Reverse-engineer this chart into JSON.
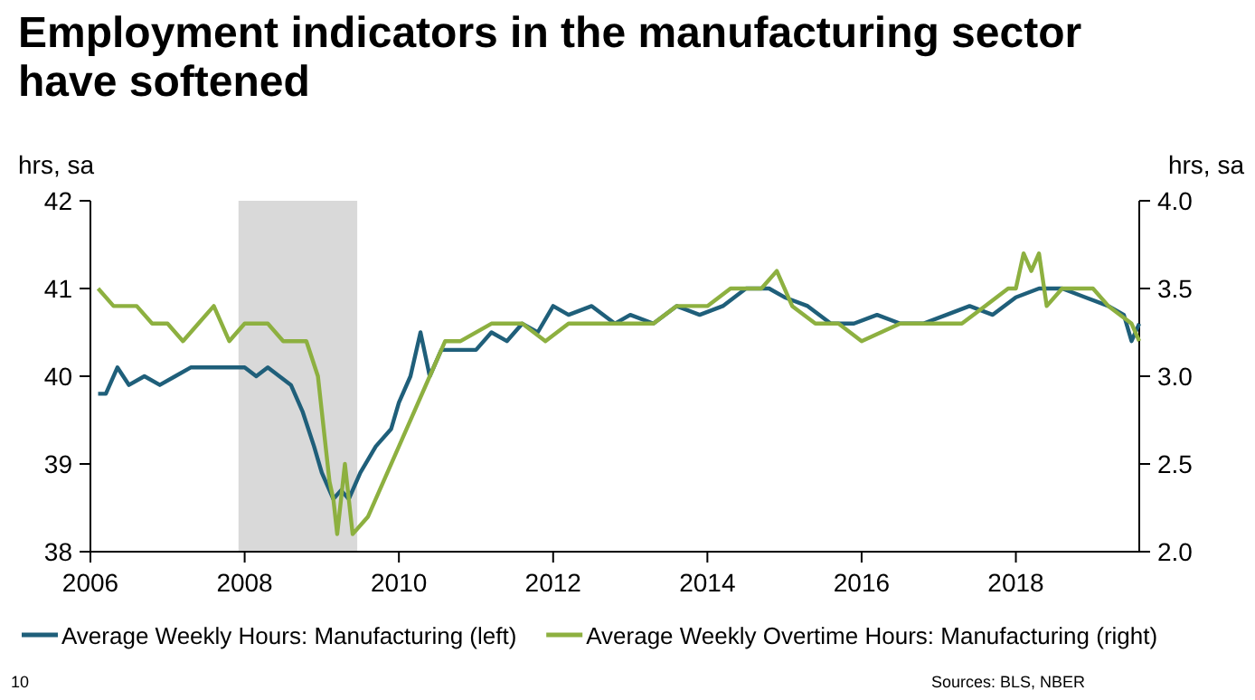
{
  "chart_data": {
    "type": "line",
    "title": "Employment indicators in the manufacturing sector have softened",
    "ylabel": "hrs, sa",
    "y2label": "hrs, sa",
    "xlim": [
      2006,
      2019.6
    ],
    "xticks": [
      2006,
      2008,
      2010,
      2012,
      2014,
      2016,
      2018
    ],
    "ylim": [
      38,
      42
    ],
    "yticks": [
      38,
      39,
      40,
      41,
      42
    ],
    "y2lim": [
      2.0,
      4.0
    ],
    "y2ticks": [
      {
        "value": 2,
        "label": "2.0"
      },
      {
        "value": 2.5,
        "label": "2.5"
      },
      {
        "value": 3,
        "label": "3.0"
      },
      {
        "value": 3.5,
        "label": "3.5"
      },
      {
        "value": 4,
        "label": "4.0"
      }
    ],
    "bands": [
      {
        "axis": "x",
        "from": 2007.92,
        "to": 2009.46,
        "color": "#d9d9d9"
      }
    ],
    "legend": "bottom",
    "marker": "none",
    "line_style": "solid",
    "series": [
      {
        "name": "Average Weekly Hours: Manufacturing (left)",
        "color": "#1f5f7a",
        "x": [
          2006.1,
          2006.2,
          2006.35,
          2006.5,
          2006.7,
          2006.9,
          2007.1,
          2007.3,
          2007.5,
          2007.7,
          2008.0,
          2008.15,
          2008.3,
          2008.45,
          2008.6,
          2008.75,
          2008.9,
          2009.0,
          2009.15,
          2009.25,
          2009.35,
          2009.5,
          2009.7,
          2009.9,
          2010.0,
          2010.15,
          2010.28,
          2010.4,
          2010.55,
          2010.8,
          2011.0,
          2011.2,
          2011.4,
          2011.6,
          2011.8,
          2012.0,
          2012.2,
          2012.5,
          2012.8,
          2013.0,
          2013.3,
          2013.6,
          2013.9,
          2014.2,
          2014.5,
          2014.8,
          2015.0,
          2015.3,
          2015.6,
          2015.9,
          2016.2,
          2016.5,
          2016.8,
          2017.1,
          2017.4,
          2017.7,
          2018.0,
          2018.3,
          2018.6,
          2018.9,
          2019.2,
          2019.4,
          2019.5,
          2019.6
        ],
        "values": [
          39.8,
          39.8,
          40.1,
          39.9,
          40.0,
          39.9,
          40.0,
          40.1,
          40.1,
          40.1,
          40.1,
          40.0,
          40.1,
          40.0,
          39.9,
          39.6,
          39.2,
          38.9,
          38.6,
          38.7,
          38.6,
          38.9,
          39.2,
          39.4,
          39.7,
          40.0,
          40.5,
          40.0,
          40.3,
          40.3,
          40.3,
          40.5,
          40.4,
          40.6,
          40.5,
          40.8,
          40.7,
          40.8,
          40.6,
          40.7,
          40.6,
          40.8,
          40.7,
          40.8,
          41.0,
          41.0,
          40.9,
          40.8,
          40.6,
          40.6,
          40.7,
          40.6,
          40.6,
          40.7,
          40.8,
          40.7,
          40.9,
          41.0,
          41.0,
          40.9,
          40.8,
          40.7,
          40.4,
          40.6
        ]
      },
      {
        "name": "Average Weekly Overtime Hours: Manufacturing (right)",
        "color": "#8db040",
        "axis": "y2",
        "x": [
          2006.1,
          2006.3,
          2006.6,
          2006.8,
          2007.0,
          2007.2,
          2007.4,
          2007.6,
          2007.8,
          2008.0,
          2008.3,
          2008.5,
          2008.8,
          2008.95,
          2009.0,
          2009.1,
          2009.15,
          2009.2,
          2009.3,
          2009.4,
          2009.6,
          2009.8,
          2010.0,
          2010.2,
          2010.4,
          2010.6,
          2010.8,
          2011.2,
          2011.6,
          2011.9,
          2012.2,
          2012.5,
          2012.8,
          2013.0,
          2013.3,
          2013.6,
          2014.0,
          2014.3,
          2014.7,
          2014.9,
          2015.1,
          2015.4,
          2015.7,
          2016.0,
          2016.5,
          2017.0,
          2017.3,
          2017.6,
          2017.9,
          2018.0,
          2018.1,
          2018.2,
          2018.3,
          2018.4,
          2018.6,
          2019.0,
          2019.2,
          2019.5,
          2019.6
        ],
        "values": [
          3.5,
          3.4,
          3.4,
          3.3,
          3.3,
          3.2,
          3.3,
          3.4,
          3.2,
          3.3,
          3.3,
          3.2,
          3.2,
          3.0,
          2.8,
          2.4,
          2.3,
          2.1,
          2.5,
          2.1,
          2.2,
          2.4,
          2.6,
          2.8,
          3.0,
          3.2,
          3.2,
          3.3,
          3.3,
          3.2,
          3.3,
          3.3,
          3.3,
          3.3,
          3.3,
          3.4,
          3.4,
          3.5,
          3.5,
          3.6,
          3.4,
          3.3,
          3.3,
          3.2,
          3.3,
          3.3,
          3.3,
          3.4,
          3.5,
          3.5,
          3.7,
          3.6,
          3.7,
          3.4,
          3.5,
          3.5,
          3.4,
          3.3,
          3.2
        ]
      }
    ],
    "annotations": [
      "10",
      "Sources: BLS, NBER"
    ]
  }
}
